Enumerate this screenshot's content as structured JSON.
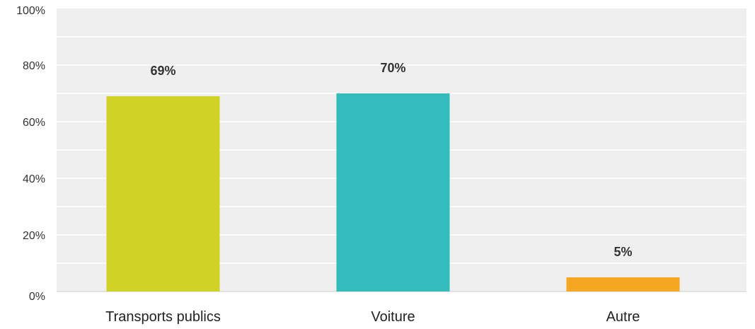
{
  "chart_data": {
    "type": "bar",
    "categories": [
      "Transports publics",
      "Voiture",
      "Autre"
    ],
    "values": [
      69,
      70,
      5
    ],
    "data_labels": [
      "69%",
      "70%",
      "5%"
    ],
    "colors": [
      "#d0d326",
      "#33bcbe",
      "#f5a623"
    ],
    "ylim": [
      0,
      100
    ],
    "yticks": [
      {
        "value": 0,
        "label": "0%"
      },
      {
        "value": 20,
        "label": "20%"
      },
      {
        "value": 40,
        "label": "40%"
      },
      {
        "value": 60,
        "label": "60%"
      },
      {
        "value": 80,
        "label": "80%"
      },
      {
        "value": 100,
        "label": "100%"
      }
    ],
    "grid": true,
    "plot_background": "#efefef",
    "gridline_color": "#ffffff"
  }
}
